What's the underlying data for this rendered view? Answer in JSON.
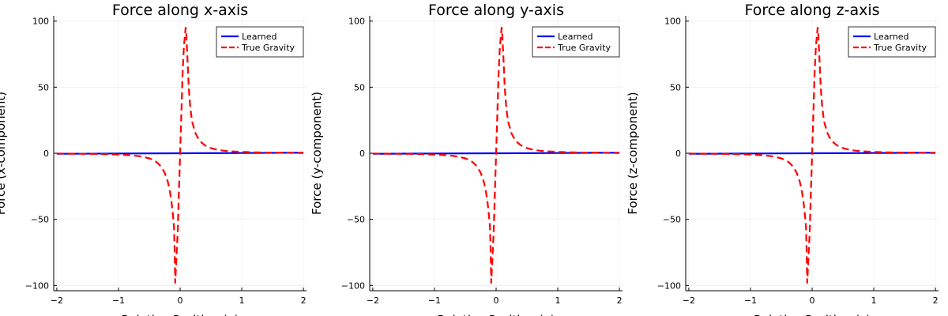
{
  "chart_data": [
    {
      "type": "line",
      "title": "Force along x-axis",
      "xlabel": "Relative Position (x)",
      "ylabel": "Force (x-component)",
      "xlim": [
        -2.05,
        2.05
      ],
      "ylim": [
        -104,
        104
      ],
      "x_ticks": [
        -2,
        -1,
        0,
        1,
        2
      ],
      "y_ticks": [
        -100,
        -50,
        0,
        50,
        100
      ],
      "x_tick_labels": [
        "−2",
        "−1",
        "0",
        "1",
        "2"
      ],
      "y_tick_labels": [
        "−100",
        "−50",
        "0",
        "50",
        "100"
      ],
      "grid": true,
      "legend_position": "top-right",
      "series": [
        {
          "name": "Learned",
          "color": "#0000ff",
          "style": "solid",
          "x": [
            -2,
            -1,
            0,
            1,
            2
          ],
          "y": [
            -0.4,
            -0.2,
            0,
            0.2,
            0.4
          ]
        },
        {
          "name": "True Gravity",
          "color": "#ff0000",
          "style": "dashed",
          "x": [
            -2.0,
            -1.8,
            -1.6,
            -1.4,
            -1.2,
            -1.0,
            -0.8,
            -0.7,
            -0.6,
            -0.5,
            -0.45,
            -0.4,
            -0.35,
            -0.3,
            -0.25,
            -0.2,
            -0.18,
            -0.16,
            -0.14,
            -0.12,
            -0.1,
            -0.09,
            -0.08,
            -0.06,
            -0.04,
            -0.02,
            0.0,
            0.02,
            0.04,
            0.06,
            0.08,
            0.09,
            0.1,
            0.12,
            0.14,
            0.16,
            0.18,
            0.2,
            0.25,
            0.3,
            0.35,
            0.4,
            0.45,
            0.5,
            0.6,
            0.7,
            0.8,
            1.0,
            1.2,
            1.4,
            1.6,
            1.8,
            2.0
          ],
          "y": [
            -0.2,
            -0.3,
            -0.4,
            -0.5,
            -0.7,
            -1.0,
            -1.5,
            -2.0,
            -2.7,
            -3.9,
            -4.8,
            -6.1,
            -8.0,
            -10.7,
            -14.8,
            -21.5,
            -25.5,
            -30.5,
            -37.0,
            -45.0,
            -55.0,
            -72.0,
            -98.0,
            -80.0,
            -60.0,
            -30.0,
            0.0,
            30.0,
            60.0,
            80.0,
            90.0,
            95.0,
            90.0,
            70.0,
            50.0,
            37.0,
            29.0,
            23.0,
            15.0,
            10.7,
            8.0,
            6.1,
            4.8,
            3.9,
            2.7,
            2.0,
            1.5,
            1.0,
            0.7,
            0.5,
            0.4,
            0.3,
            0.2
          ]
        }
      ]
    },
    {
      "type": "line",
      "title": "Force along y-axis",
      "xlabel": "Relative Position (y)",
      "ylabel": "Force (y-component)",
      "xlim": [
        -2.05,
        2.05
      ],
      "ylim": [
        -104,
        104
      ],
      "x_ticks": [
        -2,
        -1,
        0,
        1,
        2
      ],
      "y_ticks": [
        -100,
        -50,
        0,
        50,
        100
      ],
      "x_tick_labels": [
        "−2",
        "−1",
        "0",
        "1",
        "2"
      ],
      "y_tick_labels": [
        "−100",
        "−50",
        "0",
        "50",
        "100"
      ],
      "grid": true,
      "legend_position": "top-right",
      "series": [
        {
          "name": "Learned",
          "color": "#0000ff",
          "style": "solid",
          "x": [
            -2,
            -1,
            0,
            1,
            2
          ],
          "y": [
            -0.4,
            -0.2,
            0,
            0.2,
            0.4
          ]
        },
        {
          "name": "True Gravity",
          "color": "#ff0000",
          "style": "dashed",
          "x": [
            -2.0,
            -1.8,
            -1.6,
            -1.4,
            -1.2,
            -1.0,
            -0.8,
            -0.7,
            -0.6,
            -0.5,
            -0.45,
            -0.4,
            -0.35,
            -0.3,
            -0.25,
            -0.2,
            -0.18,
            -0.16,
            -0.14,
            -0.12,
            -0.1,
            -0.09,
            -0.08,
            -0.06,
            -0.04,
            -0.02,
            0.0,
            0.02,
            0.04,
            0.06,
            0.08,
            0.09,
            0.1,
            0.12,
            0.14,
            0.16,
            0.18,
            0.2,
            0.25,
            0.3,
            0.35,
            0.4,
            0.45,
            0.5,
            0.6,
            0.7,
            0.8,
            1.0,
            1.2,
            1.4,
            1.6,
            1.8,
            2.0
          ],
          "y": [
            -0.2,
            -0.3,
            -0.4,
            -0.5,
            -0.7,
            -1.0,
            -1.5,
            -2.0,
            -2.7,
            -3.9,
            -4.8,
            -6.1,
            -8.0,
            -10.7,
            -14.8,
            -21.5,
            -25.5,
            -30.5,
            -37.0,
            -45.0,
            -55.0,
            -72.0,
            -98.0,
            -80.0,
            -60.0,
            -30.0,
            0.0,
            30.0,
            60.0,
            80.0,
            90.0,
            95.0,
            90.0,
            70.0,
            50.0,
            37.0,
            29.0,
            23.0,
            15.0,
            10.7,
            8.0,
            6.1,
            4.8,
            3.9,
            2.7,
            2.0,
            1.5,
            1.0,
            0.7,
            0.5,
            0.4,
            0.3,
            0.2
          ]
        }
      ]
    },
    {
      "type": "line",
      "title": "Force along z-axis",
      "xlabel": "Relative Position (z)",
      "ylabel": "Force (z-component)",
      "xlim": [
        -2.05,
        2.05
      ],
      "ylim": [
        -104,
        104
      ],
      "x_ticks": [
        -2,
        -1,
        0,
        1,
        2
      ],
      "y_ticks": [
        -100,
        -50,
        0,
        50,
        100
      ],
      "x_tick_labels": [
        "−2",
        "−1",
        "0",
        "1",
        "2"
      ],
      "y_tick_labels": [
        "−100",
        "−50",
        "0",
        "50",
        "100"
      ],
      "grid": true,
      "legend_position": "top-right",
      "series": [
        {
          "name": "Learned",
          "color": "#0000ff",
          "style": "solid",
          "x": [
            -2,
            -1,
            0,
            1,
            2
          ],
          "y": [
            -0.4,
            -0.2,
            0,
            0.2,
            0.4
          ]
        },
        {
          "name": "True Gravity",
          "color": "#ff0000",
          "style": "dashed",
          "x": [
            -2.0,
            -1.8,
            -1.6,
            -1.4,
            -1.2,
            -1.0,
            -0.8,
            -0.7,
            -0.6,
            -0.5,
            -0.45,
            -0.4,
            -0.35,
            -0.3,
            -0.25,
            -0.2,
            -0.18,
            -0.16,
            -0.14,
            -0.12,
            -0.1,
            -0.09,
            -0.08,
            -0.06,
            -0.04,
            -0.02,
            0.0,
            0.02,
            0.04,
            0.06,
            0.08,
            0.09,
            0.1,
            0.12,
            0.14,
            0.16,
            0.18,
            0.2,
            0.25,
            0.3,
            0.35,
            0.4,
            0.45,
            0.5,
            0.6,
            0.7,
            0.8,
            1.0,
            1.2,
            1.4,
            1.6,
            1.8,
            2.0
          ],
          "y": [
            -0.2,
            -0.3,
            -0.4,
            -0.5,
            -0.7,
            -1.0,
            -1.5,
            -2.0,
            -2.7,
            -3.9,
            -4.8,
            -6.1,
            -8.0,
            -10.7,
            -14.8,
            -21.5,
            -25.5,
            -30.5,
            -37.0,
            -45.0,
            -55.0,
            -72.0,
            -98.0,
            -80.0,
            -60.0,
            -30.0,
            0.0,
            30.0,
            60.0,
            80.0,
            90.0,
            95.0,
            90.0,
            70.0,
            50.0,
            37.0,
            29.0,
            23.0,
            15.0,
            10.7,
            8.0,
            6.1,
            4.8,
            3.9,
            2.7,
            2.0,
            1.5,
            1.0,
            0.7,
            0.5,
            0.4,
            0.3,
            0.2
          ]
        }
      ]
    }
  ]
}
